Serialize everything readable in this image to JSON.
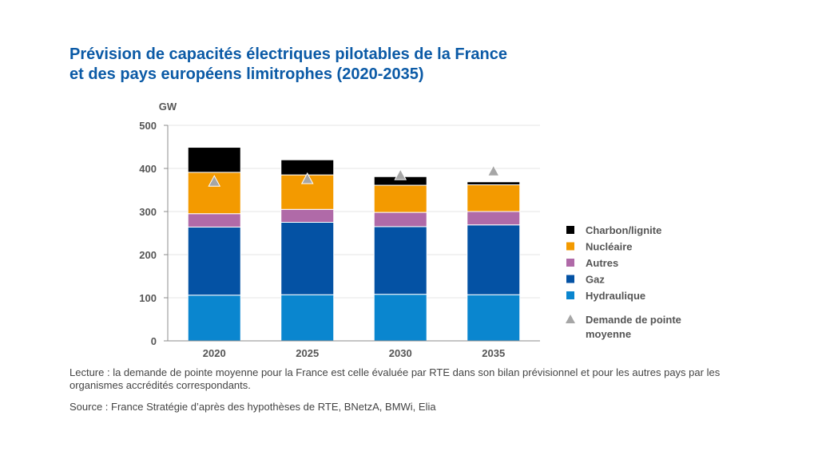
{
  "header": {
    "title_line1": "Prévision de capacités électriques pilotables de la France",
    "title_line2": "et des pays européens limitrophes (2020-2035)"
  },
  "chart_data": {
    "type": "bar",
    "stacked": true,
    "ylabel": "GW",
    "xlabel": "",
    "ylim": [
      0,
      500
    ],
    "yticks": [
      0,
      100,
      200,
      300,
      400,
      500
    ],
    "grid": true,
    "legend_position": "right",
    "categories": [
      "2020",
      "2025",
      "2030",
      "2035"
    ],
    "series": [
      {
        "name": "Hydraulique",
        "color": "#0a86cf",
        "values": [
          106,
          107,
          108,
          107
        ]
      },
      {
        "name": "Gaz",
        "color": "#0452a4",
        "values": [
          158,
          168,
          157,
          162
        ]
      },
      {
        "name": "Autres",
        "color": "#b06aa8",
        "values": [
          31,
          30,
          33,
          31
        ]
      },
      {
        "name": "Nucléaire",
        "color": "#f39a00",
        "values": [
          96,
          80,
          63,
          62
        ]
      },
      {
        "name": "Charbon/lignite",
        "color": "#000000",
        "values": [
          58,
          35,
          20,
          7
        ]
      }
    ],
    "markers": {
      "name": "Demande de pointe moyenne",
      "color": "#a6a6a6",
      "values": [
        370,
        376,
        385,
        394
      ]
    }
  },
  "footer": {
    "lecture": "Lecture : la demande de pointe moyenne pour la France est celle évaluée par RTE dans son bilan prévisionnel et pour les autres pays par les organismes accrédités correspondants.",
    "source": "Source : France Stratégie d’après des hypothèses de RTE, BNetzA, BMWi, Elia"
  }
}
